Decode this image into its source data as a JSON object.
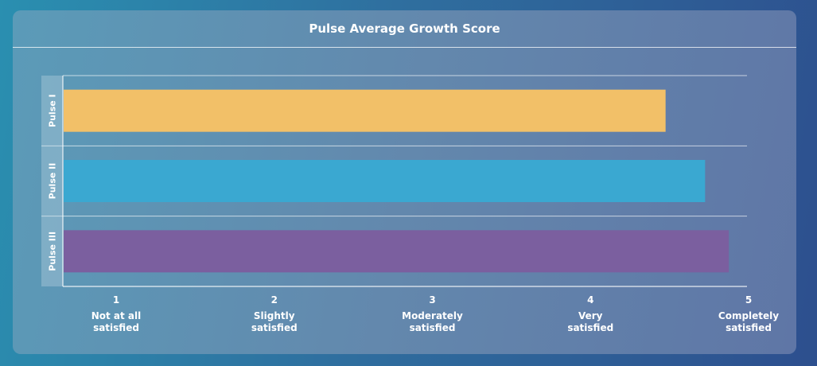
{
  "chart_data": {
    "type": "bar",
    "orientation": "horizontal",
    "title": "Pulse Average Growth Score",
    "categories": [
      "Pulse I",
      "Pulse II",
      "Pulse III"
    ],
    "values": [
      4.47,
      4.72,
      4.87
    ],
    "colors": [
      "#f2c068",
      "#3aa8d1",
      "#7b5f9f"
    ],
    "xlim": [
      1,
      5
    ],
    "x_ticks": [
      {
        "value": 1,
        "label": "1",
        "desc": [
          "Not at all",
          "satisfied"
        ]
      },
      {
        "value": 2,
        "label": "2",
        "desc": [
          "Slightly",
          "satisfied"
        ]
      },
      {
        "value": 3,
        "label": "3",
        "desc": [
          "Moderately",
          "satisfied"
        ]
      },
      {
        "value": 4,
        "label": "4",
        "desc": [
          "Very",
          "satisfied"
        ]
      },
      {
        "value": 5,
        "label": "5",
        "desc": [
          "Completely",
          "satisfied"
        ]
      }
    ],
    "grid": "horizontal separators",
    "legend": "none"
  }
}
